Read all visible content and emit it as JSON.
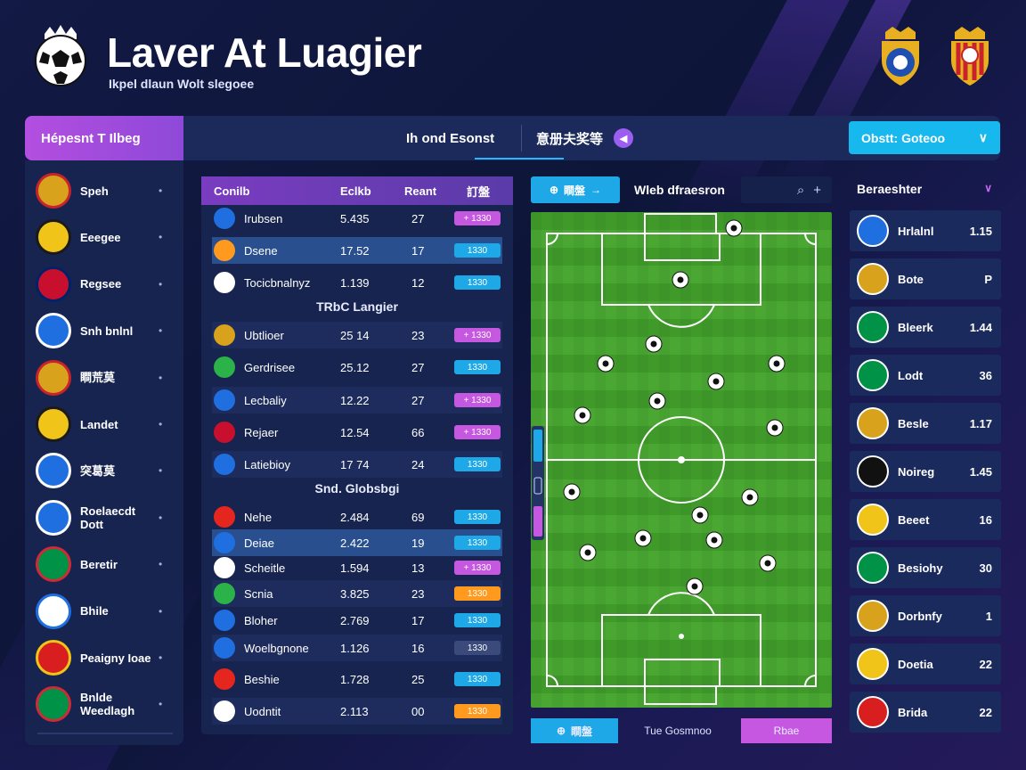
{
  "header": {
    "title": "Laver At Luagier",
    "subtitle": "Ikpel dlaun Wolt slegoee"
  },
  "nav": {
    "active_tab": "Hépesnt T Ilbeg",
    "tab_two": "Ih ond Esonst",
    "tab_three": "意册夫奖等",
    "tab_three_badge": "◀",
    "dropdown_label": "Obstt:  Goteoo",
    "dropdown_caret": "∨"
  },
  "sidebar": {
    "items": [
      {
        "label": "Speh",
        "color": "#d8a21c",
        "ring": "#c8232c"
      },
      {
        "label": "Eeegee",
        "color": "#f0c419",
        "ring": "#1a1a1a"
      },
      {
        "label": "Regsee",
        "color": "#c8102e",
        "ring": "#012169"
      },
      {
        "label": "Snh bnlnl",
        "color": "#1f6fe0",
        "ring": "#ffffff"
      },
      {
        "label": "瞷荒莫",
        "color": "#d8a21c",
        "ring": "#c8232c"
      },
      {
        "label": "Landet",
        "color": "#f0c419",
        "ring": "#1a1a1a"
      },
      {
        "label": "突葛莫",
        "color": "#1f6fe0",
        "ring": "#ffffff"
      },
      {
        "label": "Roelaecdt Dott",
        "color": "#1f6fe0",
        "ring": "#ffffff"
      },
      {
        "label": "Beretir",
        "color": "#009246",
        "ring": "#ce2b37"
      },
      {
        "label": "Bhile",
        "color": "#ffffff",
        "ring": "#1f6fe0"
      },
      {
        "label": "Peaigny Ioae",
        "color": "#d81e1e",
        "ring": "#f0c419"
      },
      {
        "label": "Bnlde Weedlagh",
        "color": "#009246",
        "ring": "#ce2b37"
      }
    ]
  },
  "table": {
    "headers": {
      "team": "Conilb",
      "c2": "Eclkb",
      "c3": "Reant",
      "c4": "訂盤"
    },
    "groups": [
      "TRbC Langier",
      "Snd. Globsbgi"
    ],
    "rows": [
      {
        "name": "Irubsen",
        "v1": "5.435",
        "v2": "27",
        "pill": "+ 1330",
        "pill_color": "#c657e0",
        "icon_color": "#1f6fe0"
      },
      {
        "name": "Dsene",
        "v1": "17.52",
        "v2": "17",
        "pill": "1330",
        "pill_color": "#1fa8e8",
        "icon_color": "#ff9a1f"
      },
      {
        "name": "Tocicbnalnyz",
        "v1": "1.139",
        "v2": "12",
        "pill": "1330",
        "pill_color": "#1fa8e8",
        "icon_color": "#ffffff"
      },
      {
        "name": "Ubtlioer",
        "v1": "25 14",
        "v2": "23",
        "pill": "+ 1330",
        "pill_color": "#c657e0",
        "icon_color": "#d8a21c"
      },
      {
        "name": "Gerdrisee",
        "v1": "25.12",
        "v2": "27",
        "pill": "1330",
        "pill_color": "#1fa8e8",
        "icon_color": "#2bb34a"
      },
      {
        "name": "Lecbaliy",
        "v1": "12.22",
        "v2": "27",
        "pill": "+ 1330",
        "pill_color": "#c657e0",
        "icon_color": "#1f6fe0"
      },
      {
        "name": "Rejaer",
        "v1": "12.54",
        "v2": "66",
        "pill": "+ 1330",
        "pill_color": "#c657e0",
        "icon_color": "#c8102e"
      },
      {
        "name": "Latiebioy",
        "v1": "17 74",
        "v2": "24",
        "pill": "1330",
        "pill_color": "#1fa8e8",
        "icon_color": "#1f6fe0"
      },
      {
        "name": "Nehe",
        "v1": "2.484",
        "v2": "69",
        "pill": "1330",
        "pill_color": "#1fa8e8",
        "icon_color": "#e5261f"
      },
      {
        "name": "Deiae",
        "v1": "2.422",
        "v2": "19",
        "pill": "1330",
        "pill_color": "#1fa8e8",
        "icon_color": "#1f6fe0"
      },
      {
        "name": "Scheitle",
        "v1": "1.594",
        "v2": "13",
        "pill": "+ 1330",
        "pill_color": "#c657e0",
        "icon_color": "#ffffff"
      },
      {
        "name": "Scnia",
        "v1": "3.825",
        "v2": "23",
        "pill": "1330",
        "pill_color": "#ff9a1f",
        "icon_color": "#2bb34a"
      },
      {
        "name": "Bloher",
        "v1": "2.769",
        "v2": "17",
        "pill": "1330",
        "pill_color": "#1fa8e8",
        "icon_color": "#1f6fe0"
      },
      {
        "name": "Woelbgnone",
        "v1": "1.126",
        "v2": "16",
        "pill": "1330",
        "pill_color": "#3a4a7a",
        "icon_color": "#1f6fe0"
      },
      {
        "name": "Beshie",
        "v1": "1.728",
        "v2": "25",
        "pill": "1330",
        "pill_color": "#1fa8e8",
        "icon_color": "#e5261f"
      },
      {
        "name": "Uodntit",
        "v1": "2.113",
        "v2": "00",
        "pill": "1330",
        "pill_color": "#ff9a1f",
        "icon_color": "#ffffff"
      }
    ]
  },
  "pitch": {
    "toolbar_button": "瞷盤",
    "title": "Wleb dfraesron",
    "search_icon": "⌕",
    "add_icon": "+",
    "bottom_left": "瞷盤",
    "bottom_mid": "Tue Gosmnoo",
    "bottom_right": "Rbae"
  },
  "right_panel": {
    "title": "Beraeshter",
    "chevron": "∨",
    "items": [
      {
        "label": "Hrlalnl",
        "value": "1.15",
        "color": "#1f6fe0"
      },
      {
        "label": "Bote",
        "value": "P",
        "color": "#d8a21c"
      },
      {
        "label": "Bleerk",
        "value": "1.44",
        "color": "#009246"
      },
      {
        "label": "Lodt",
        "value": "36",
        "color": "#009246"
      },
      {
        "label": "Besle",
        "value": "1.17",
        "color": "#d8a21c"
      },
      {
        "label": "Noireg",
        "value": "1.45",
        "color": "#111111"
      },
      {
        "label": "Beeet",
        "value": "16",
        "color": "#f0c419"
      },
      {
        "label": "Besiohy",
        "value": "30",
        "color": "#009246"
      },
      {
        "label": "Dorbnfy",
        "value": "1",
        "color": "#d8a21c"
      },
      {
        "label": "Doetia",
        "value": "22",
        "color": "#f0c419"
      },
      {
        "label": "Brida",
        "value": "22",
        "color": "#d81e1e"
      }
    ]
  }
}
